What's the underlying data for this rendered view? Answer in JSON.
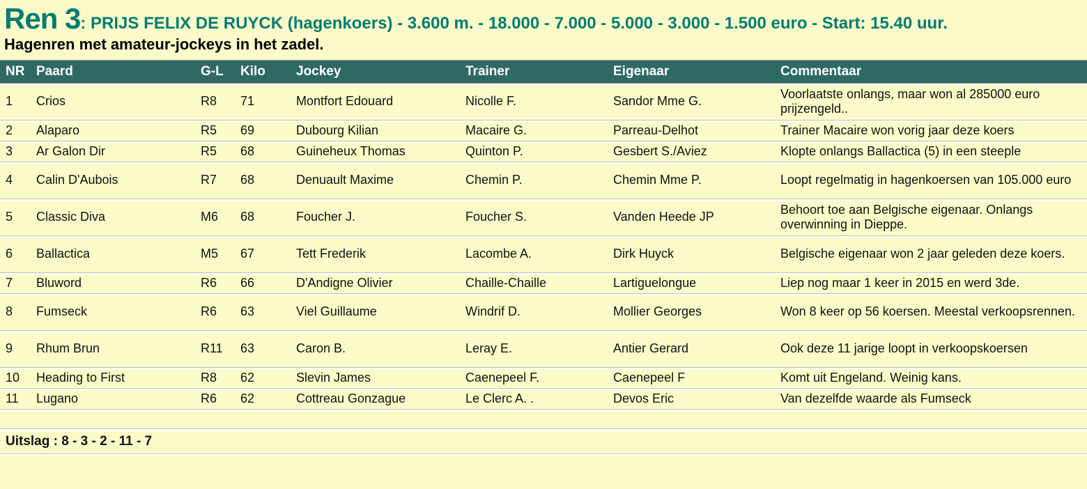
{
  "page": {
    "background_color": "#fbfbc9",
    "accent_color": "#037c73",
    "table_header_bg": "#2f6a62"
  },
  "title": {
    "race_label": "Ren 3",
    "race_details": ": PRIJS FELIX DE RUYCK (hagenkoers) - 3.600 m. - 18.000 - 7.000 - 5.000 - 3.000 - 1.500 euro - Start: 15.40 uur.",
    "subtitle": "Hagenren met amateur-jockeys in het zadel."
  },
  "table": {
    "columns": [
      "NR",
      "Paard",
      "G-L",
      "Kilo",
      "Jockey",
      "Trainer",
      "Eigenaar",
      "Commentaar"
    ],
    "rows": [
      {
        "nr": "1",
        "paard": "Crios",
        "gl": "R8",
        "kilo": "71",
        "jockey": "Montfort Edouard",
        "trainer": "Nicolle F.",
        "eigenaar": "Sandor Mme G.",
        "commentaar": "Voorlaatste onlangs, maar won al 285000 euro prijzengeld.."
      },
      {
        "nr": "2",
        "paard": "Alaparo",
        "gl": "R5",
        "kilo": "69",
        "jockey": "Dubourg Kilian",
        "trainer": "Macaire G.",
        "eigenaar": "Parreau-Delhot",
        "commentaar": "Trainer Macaire won vorig jaar deze koers"
      },
      {
        "nr": "3",
        "paard": "Ar Galon Dir",
        "gl": "R5",
        "kilo": "68",
        "jockey": "Guineheux Thomas",
        "trainer": "Quinton P.",
        "eigenaar": "Gesbert S./Aviez",
        "commentaar": "Klopte onlangs Ballactica (5) in een steeple"
      },
      {
        "nr": "4",
        "paard": "Calin D'Aubois",
        "gl": "R7",
        "kilo": "68",
        "jockey": "Denuault Maxime",
        "trainer": "Chemin P.",
        "eigenaar": "Chemin Mme P.",
        "commentaar": "Loopt regelmatig in hagenkoersen van 105.000 euro"
      },
      {
        "nr": "5",
        "paard": "Classic Diva",
        "gl": "M6",
        "kilo": "68",
        "jockey": "Foucher J.",
        "trainer": "Foucher S.",
        "eigenaar": "Vanden Heede JP",
        "commentaar": "Behoort toe aan Belgische eigenaar. Onlangs overwinning in Dieppe."
      },
      {
        "nr": "6",
        "paard": "Ballactica",
        "gl": "M5",
        "kilo": "67",
        "jockey": "Tett Frederik",
        "trainer": "Lacombe A.",
        "eigenaar": "Dirk Huyck",
        "commentaar": "Belgische eigenaar won 2 jaar geleden deze koers."
      },
      {
        "nr": "7",
        "paard": "Bluword",
        "gl": "R6",
        "kilo": "66",
        "jockey": "D'Andigne Olivier",
        "trainer": "Chaille-Chaille",
        "eigenaar": "Lartiguelongue",
        "commentaar": "Liep nog maar 1 keer in 2015 en werd 3de."
      },
      {
        "nr": "8",
        "paard": "Fumseck",
        "gl": "R6",
        "kilo": "63",
        "jockey": "Viel Guillaume",
        "trainer": "Windrif D.",
        "eigenaar": "Mollier Georges",
        "commentaar": "Won 8 keer op 56 koersen. Meestal verkoopsrennen."
      },
      {
        "nr": "9",
        "paard": "Rhum Brun",
        "gl": "R11",
        "kilo": "63",
        "jockey": "Caron B.",
        "trainer": "Leray E.",
        "eigenaar": "Antier Gerard",
        "commentaar": "Ook deze 11 jarige loopt in verkoopskoersen"
      },
      {
        "nr": "10",
        "paard": "Heading to First",
        "gl": "R8",
        "kilo": "62",
        "jockey": "Slevin James",
        "trainer": "Caenepeel F.",
        "eigenaar": "Caenepeel F",
        "commentaar": "Komt uit Engeland. Weinig kans."
      },
      {
        "nr": "11",
        "paard": "Lugano",
        "gl": "R6",
        "kilo": "62",
        "jockey": "Cottreau Gonzague",
        "trainer": "Le Clerc A. .",
        "eigenaar": "Devos Eric",
        "commentaar": "Van dezelfde waarde als Fumseck"
      }
    ]
  },
  "result": {
    "label": "Uitslag : 8 - 3 - 2 - 11 - 7"
  }
}
